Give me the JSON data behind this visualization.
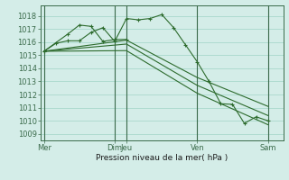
{
  "bg_color": "#d4ede8",
  "grid_color": "#a8d8cc",
  "line_color": "#2d6b2d",
  "ylabel": "Pression niveau de la mer( hPa )",
  "ylim": [
    1008.5,
    1018.8
  ],
  "yticks": [
    1009,
    1010,
    1011,
    1012,
    1013,
    1014,
    1015,
    1016,
    1017,
    1018
  ],
  "xlim": [
    -0.3,
    20.3
  ],
  "xtick_labels": [
    "Mer",
    "Dim",
    "Jeu",
    "Ven",
    "Sam"
  ],
  "xtick_positions": [
    0,
    6,
    7,
    13,
    19
  ],
  "vlines_x": [
    0,
    6,
    7,
    13,
    19
  ],
  "line_main_x": [
    0,
    1,
    2,
    3,
    4,
    5,
    6,
    7,
    8,
    9,
    10,
    11,
    12,
    13,
    14,
    15,
    16,
    17,
    18,
    19
  ],
  "line_main_y": [
    1015.3,
    1015.9,
    1016.1,
    1016.1,
    1016.75,
    1017.1,
    1016.05,
    1017.8,
    1017.7,
    1017.8,
    1018.1,
    1017.1,
    1015.8,
    1014.5,
    1013.0,
    1011.3,
    1011.25,
    1009.8,
    1010.3,
    1010.0
  ],
  "line2_x": [
    0,
    2,
    3,
    4,
    5,
    6,
    7
  ],
  "line2_y": [
    1015.3,
    1016.6,
    1017.3,
    1017.2,
    1016.05,
    1016.2,
    1016.2
  ],
  "line3_x": [
    0,
    7,
    13,
    19
  ],
  "line3_y": [
    1015.3,
    1016.15,
    1013.3,
    1011.1
  ],
  "line4_x": [
    0,
    7,
    13,
    19
  ],
  "line4_y": [
    1015.3,
    1015.85,
    1012.7,
    1010.4
  ],
  "line5_x": [
    0,
    7,
    13,
    19
  ],
  "line5_y": [
    1015.3,
    1015.35,
    1012.1,
    1009.7
  ]
}
